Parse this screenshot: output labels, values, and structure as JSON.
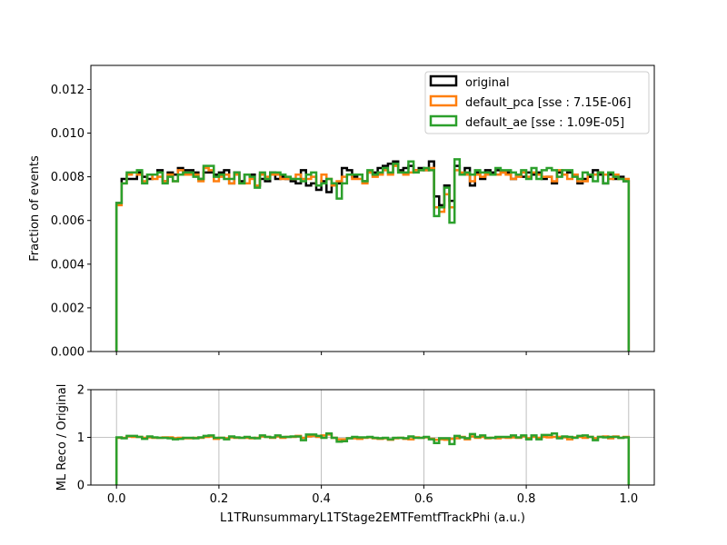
{
  "chart_data": [
    {
      "type": "line",
      "subtype": "step-histogram",
      "title": "",
      "xlabel": "",
      "ylabel": "Fraction of events",
      "xlim": [
        -0.05,
        1.05
      ],
      "ylim": [
        0.0,
        0.0131
      ],
      "yticks": [
        "0.000",
        "0.002",
        "0.004",
        "0.006",
        "0.008",
        "0.010",
        "0.012"
      ],
      "ytick_values": [
        0.0,
        0.002,
        0.004,
        0.006,
        0.008,
        0.01,
        0.012
      ],
      "grid": false,
      "legend_position": "top-right",
      "bin_edges_range": [
        0.0,
        1.0
      ],
      "n_bins": 100,
      "series": [
        {
          "name": "original",
          "color": "#000000",
          "values": [
            0.0068,
            0.0079,
            0.0079,
            0.0079,
            0.0082,
            0.008,
            0.0079,
            0.0081,
            0.0083,
            0.0078,
            0.0082,
            0.0081,
            0.0084,
            0.0083,
            0.0083,
            0.0082,
            0.0079,
            0.0082,
            0.0082,
            0.0081,
            0.0082,
            0.0083,
            0.0077,
            0.0082,
            0.0078,
            0.0081,
            0.0081,
            0.0076,
            0.0079,
            0.0078,
            0.0082,
            0.0079,
            0.008,
            0.0079,
            0.0078,
            0.0077,
            0.0083,
            0.0076,
            0.0077,
            0.0074,
            0.0078,
            0.0073,
            0.0077,
            0.0077,
            0.0084,
            0.0083,
            0.008,
            0.0081,
            0.0078,
            0.0082,
            0.0082,
            0.0084,
            0.0085,
            0.0086,
            0.0087,
            0.0083,
            0.0084,
            0.0085,
            0.0083,
            0.0084,
            0.0083,
            0.0087,
            0.0071,
            0.0067,
            0.0076,
            0.0069,
            0.0085,
            0.0081,
            0.0084,
            0.0076,
            0.0082,
            0.0079,
            0.0083,
            0.0082,
            0.0083,
            0.0082,
            0.0082,
            0.0079,
            0.0081,
            0.008,
            0.0082,
            0.0081,
            0.0082,
            0.0079,
            0.008,
            0.0077,
            0.0082,
            0.0081,
            0.0082,
            0.0081,
            0.0077,
            0.0079,
            0.008,
            0.0083,
            0.0081,
            0.0077,
            0.0081,
            0.0079,
            0.008,
            0.0078
          ]
        },
        {
          "name": "default_pca [sse : 7.15E-06]",
          "color": "#ff7f0e",
          "values": [
            0.0067,
            0.0077,
            0.0081,
            0.0082,
            0.0081,
            0.0078,
            0.0081,
            0.0079,
            0.008,
            0.0078,
            0.0081,
            0.0078,
            0.0083,
            0.0081,
            0.0081,
            0.0081,
            0.0078,
            0.0084,
            0.0083,
            0.0078,
            0.008,
            0.0081,
            0.0077,
            0.0081,
            0.0077,
            0.0077,
            0.0079,
            0.0076,
            0.0081,
            0.008,
            0.0081,
            0.0081,
            0.0079,
            0.0079,
            0.0079,
            0.0081,
            0.0079,
            0.0079,
            0.008,
            0.0076,
            0.0081,
            0.0079,
            0.0076,
            0.0078,
            0.008,
            0.0081,
            0.0079,
            0.0079,
            0.0077,
            0.0082,
            0.008,
            0.0081,
            0.0083,
            0.0081,
            0.0085,
            0.0082,
            0.0081,
            0.0082,
            0.0083,
            0.0083,
            0.0083,
            0.0084,
            0.0066,
            0.0064,
            0.0072,
            0.0066,
            0.0083,
            0.0082,
            0.0081,
            0.0078,
            0.0081,
            0.008,
            0.0081,
            0.0081,
            0.0081,
            0.0082,
            0.0081,
            0.0079,
            0.008,
            0.0082,
            0.008,
            0.0082,
            0.0081,
            0.008,
            0.008,
            0.0078,
            0.0083,
            0.0081,
            0.0079,
            0.0081,
            0.0078,
            0.0078,
            0.0081,
            0.0081,
            0.0082,
            0.0081,
            0.0079,
            0.0081,
            0.0079,
            0.0079
          ]
        },
        {
          "name": "default_ae [sse : 1.09E-05]",
          "color": "#2ca02c",
          "values": [
            0.0068,
            0.0077,
            0.0082,
            0.0082,
            0.0083,
            0.0077,
            0.0081,
            0.0081,
            0.0082,
            0.0077,
            0.008,
            0.0078,
            0.0081,
            0.0082,
            0.0082,
            0.008,
            0.0079,
            0.0085,
            0.0085,
            0.008,
            0.0081,
            0.0079,
            0.0079,
            0.0082,
            0.0077,
            0.0081,
            0.008,
            0.0075,
            0.0082,
            0.0079,
            0.0082,
            0.0082,
            0.0081,
            0.008,
            0.0079,
            0.0079,
            0.0078,
            0.0081,
            0.0082,
            0.0076,
            0.0077,
            0.0079,
            0.0077,
            0.007,
            0.0077,
            0.0081,
            0.0081,
            0.0081,
            0.0078,
            0.0083,
            0.0081,
            0.0082,
            0.0084,
            0.0082,
            0.0086,
            0.0082,
            0.0082,
            0.0087,
            0.0082,
            0.0083,
            0.0084,
            0.0083,
            0.0062,
            0.0066,
            0.0075,
            0.0059,
            0.0088,
            0.0081,
            0.0082,
            0.0081,
            0.0083,
            0.0082,
            0.0082,
            0.0081,
            0.0084,
            0.0083,
            0.0083,
            0.0082,
            0.0081,
            0.0083,
            0.0079,
            0.0084,
            0.0079,
            0.0083,
            0.0084,
            0.0083,
            0.008,
            0.0083,
            0.0083,
            0.008,
            0.0079,
            0.0082,
            0.0081,
            0.0078,
            0.0082,
            0.0077,
            0.0082,
            0.008,
            0.0079,
            0.0078
          ]
        }
      ]
    },
    {
      "type": "line",
      "subtype": "step-histogram-ratio",
      "title": "",
      "xlabel": "L1TRunsummaryL1TStage2EMTFemtfTrackPhi (a.u.)",
      "ylabel": "ML Reco / Original",
      "xlim": [
        -0.05,
        1.05
      ],
      "ylim": [
        0,
        2
      ],
      "xticks": [
        "0.0",
        "0.2",
        "0.4",
        "0.6",
        "0.8",
        "1.0"
      ],
      "xtick_values": [
        0.0,
        0.2,
        0.4,
        0.6,
        0.8,
        1.0
      ],
      "yticks": [
        "0",
        "1",
        "2"
      ],
      "ytick_values": [
        0,
        1,
        2
      ],
      "grid": true,
      "series": [
        {
          "name": "default_pca [sse : 7.15E-06]",
          "color": "#ff7f0e",
          "values": [
            0.99,
            0.99,
            1.02,
            1.01,
            1.01,
            0.99,
            1.0,
            0.99,
            0.99,
            1.0,
            1.0,
            0.98,
            0.99,
            0.98,
            0.98,
            0.99,
            0.99,
            1.01,
            1.02,
            0.97,
            0.99,
            0.98,
            1.0,
            0.99,
            0.99,
            0.99,
            0.98,
            0.99,
            1.02,
            1.01,
            0.99,
            1.02,
            0.99,
            1.01,
            1.01,
            1.03,
            0.99,
            1.02,
            1.03,
            1.01,
            1.04,
            1.06,
            0.99,
            0.96,
            0.96,
            0.98,
            0.98,
            0.97,
            0.99,
            1.0,
            0.98,
            0.97,
            0.98,
            0.95,
            0.98,
            0.99,
            0.97,
            0.96,
            1.0,
            0.99,
            1.0,
            0.97,
            0.95,
            0.96,
            0.95,
            0.97,
            0.98,
            1.01,
            0.96,
            1.02,
            0.99,
            1.01,
            0.98,
            0.99,
            0.98,
            1.0,
            0.99,
            1.0,
            0.99,
            1.02,
            0.98,
            1.01,
            0.99,
            1.01,
            1.0,
            1.01,
            1.01,
            1.0,
            0.96,
            1.0,
            1.01,
            0.99,
            1.01,
            0.98,
            1.01,
            1.02,
            0.98,
            1.02,
            0.99,
            1.01
          ]
        },
        {
          "name": "default_ae [sse : 1.09E-05]",
          "color": "#2ca02c",
          "values": [
            1.0,
            0.98,
            1.03,
            1.03,
            1.01,
            0.97,
            1.02,
            1.0,
            0.99,
            0.99,
            0.98,
            0.96,
            0.97,
            0.99,
            0.99,
            0.98,
            1.0,
            1.03,
            1.04,
            0.99,
            0.99,
            0.96,
            1.02,
            1.0,
            0.99,
            1.01,
            0.99,
            0.98,
            1.04,
            1.01,
            1.0,
            1.04,
            1.01,
            1.01,
            1.02,
            1.02,
            0.94,
            1.06,
            1.06,
            1.03,
            0.99,
            1.08,
            0.99,
            0.91,
            0.92,
            0.98,
            1.01,
            1.0,
            1.0,
            1.01,
            0.99,
            0.98,
            0.99,
            0.96,
            0.99,
            0.99,
            0.98,
            1.02,
            0.99,
            0.99,
            1.01,
            0.96,
            0.88,
            0.98,
            0.98,
            0.86,
            1.03,
            1.0,
            0.98,
            1.07,
            1.01,
            1.04,
            0.99,
            0.99,
            1.01,
            1.01,
            1.01,
            1.04,
            1.0,
            1.04,
            0.96,
            1.04,
            0.96,
            1.05,
            1.05,
            1.08,
            0.98,
            1.02,
            1.01,
            0.99,
            1.03,
            1.04,
            1.01,
            0.94,
            1.01,
            1.0,
            1.01,
            1.01,
            0.99,
            1.0
          ]
        }
      ]
    }
  ]
}
